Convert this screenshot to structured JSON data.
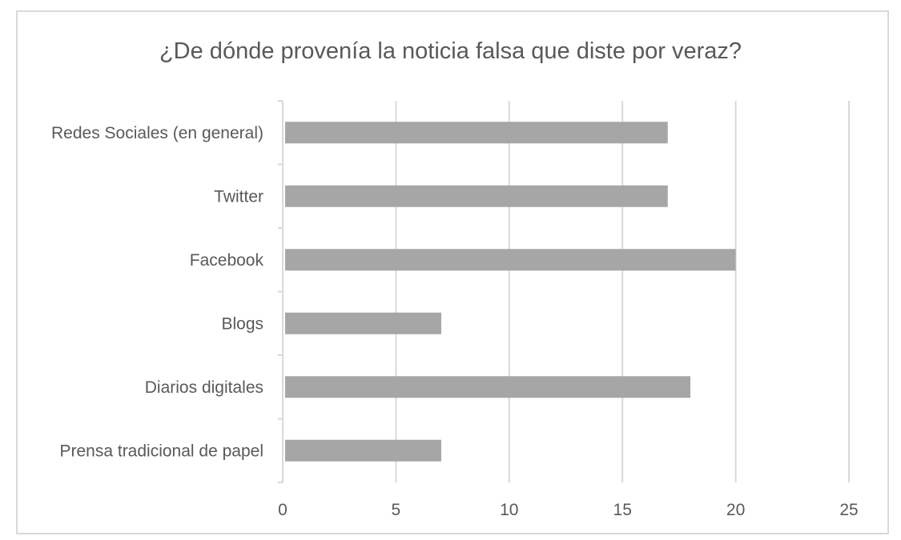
{
  "chart_data": {
    "type": "bar",
    "orientation": "horizontal",
    "title": "¿De dónde provenía la noticia falsa que diste por veraz?",
    "categories": [
      "Redes Sociales (en general)",
      "Twitter",
      "Facebook",
      "Blogs",
      "Diarios digitales",
      "Prensa tradicional de papel"
    ],
    "values": [
      17,
      17,
      20,
      7,
      18,
      7
    ],
    "xlim": [
      0,
      25
    ],
    "xticks": [
      0,
      5,
      10,
      15,
      20,
      25
    ],
    "grid": true,
    "bar_color": "#a6a6a6",
    "grid_color": "#d9d9d9",
    "text_color": "#595959"
  }
}
